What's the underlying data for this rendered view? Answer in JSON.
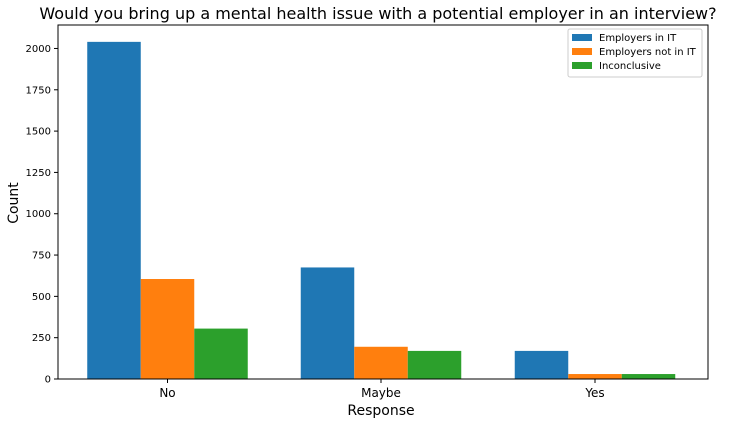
{
  "chart_data": {
    "type": "bar",
    "title": "Would you bring up a mental health issue with a potential employer in an interview?",
    "xlabel": "Response",
    "ylabel": "Count",
    "categories": [
      "No",
      "Maybe",
      "Yes"
    ],
    "series": [
      {
        "name": "Employers in IT",
        "color": "#1f77b4",
        "values": [
          2040,
          675,
          170
        ]
      },
      {
        "name": "Employers not in IT",
        "color": "#ff7f0e",
        "values": [
          605,
          195,
          30
        ]
      },
      {
        "name": "Inconclusive",
        "color": "#2ca02c",
        "values": [
          305,
          170,
          30
        ]
      }
    ],
    "ylim": [
      0,
      2142
    ],
    "yticks": [
      "0",
      "250",
      "500",
      "750",
      "1000",
      "1250",
      "1500",
      "1750",
      "2000"
    ],
    "legend_position": "top-right",
    "grid": false
  }
}
